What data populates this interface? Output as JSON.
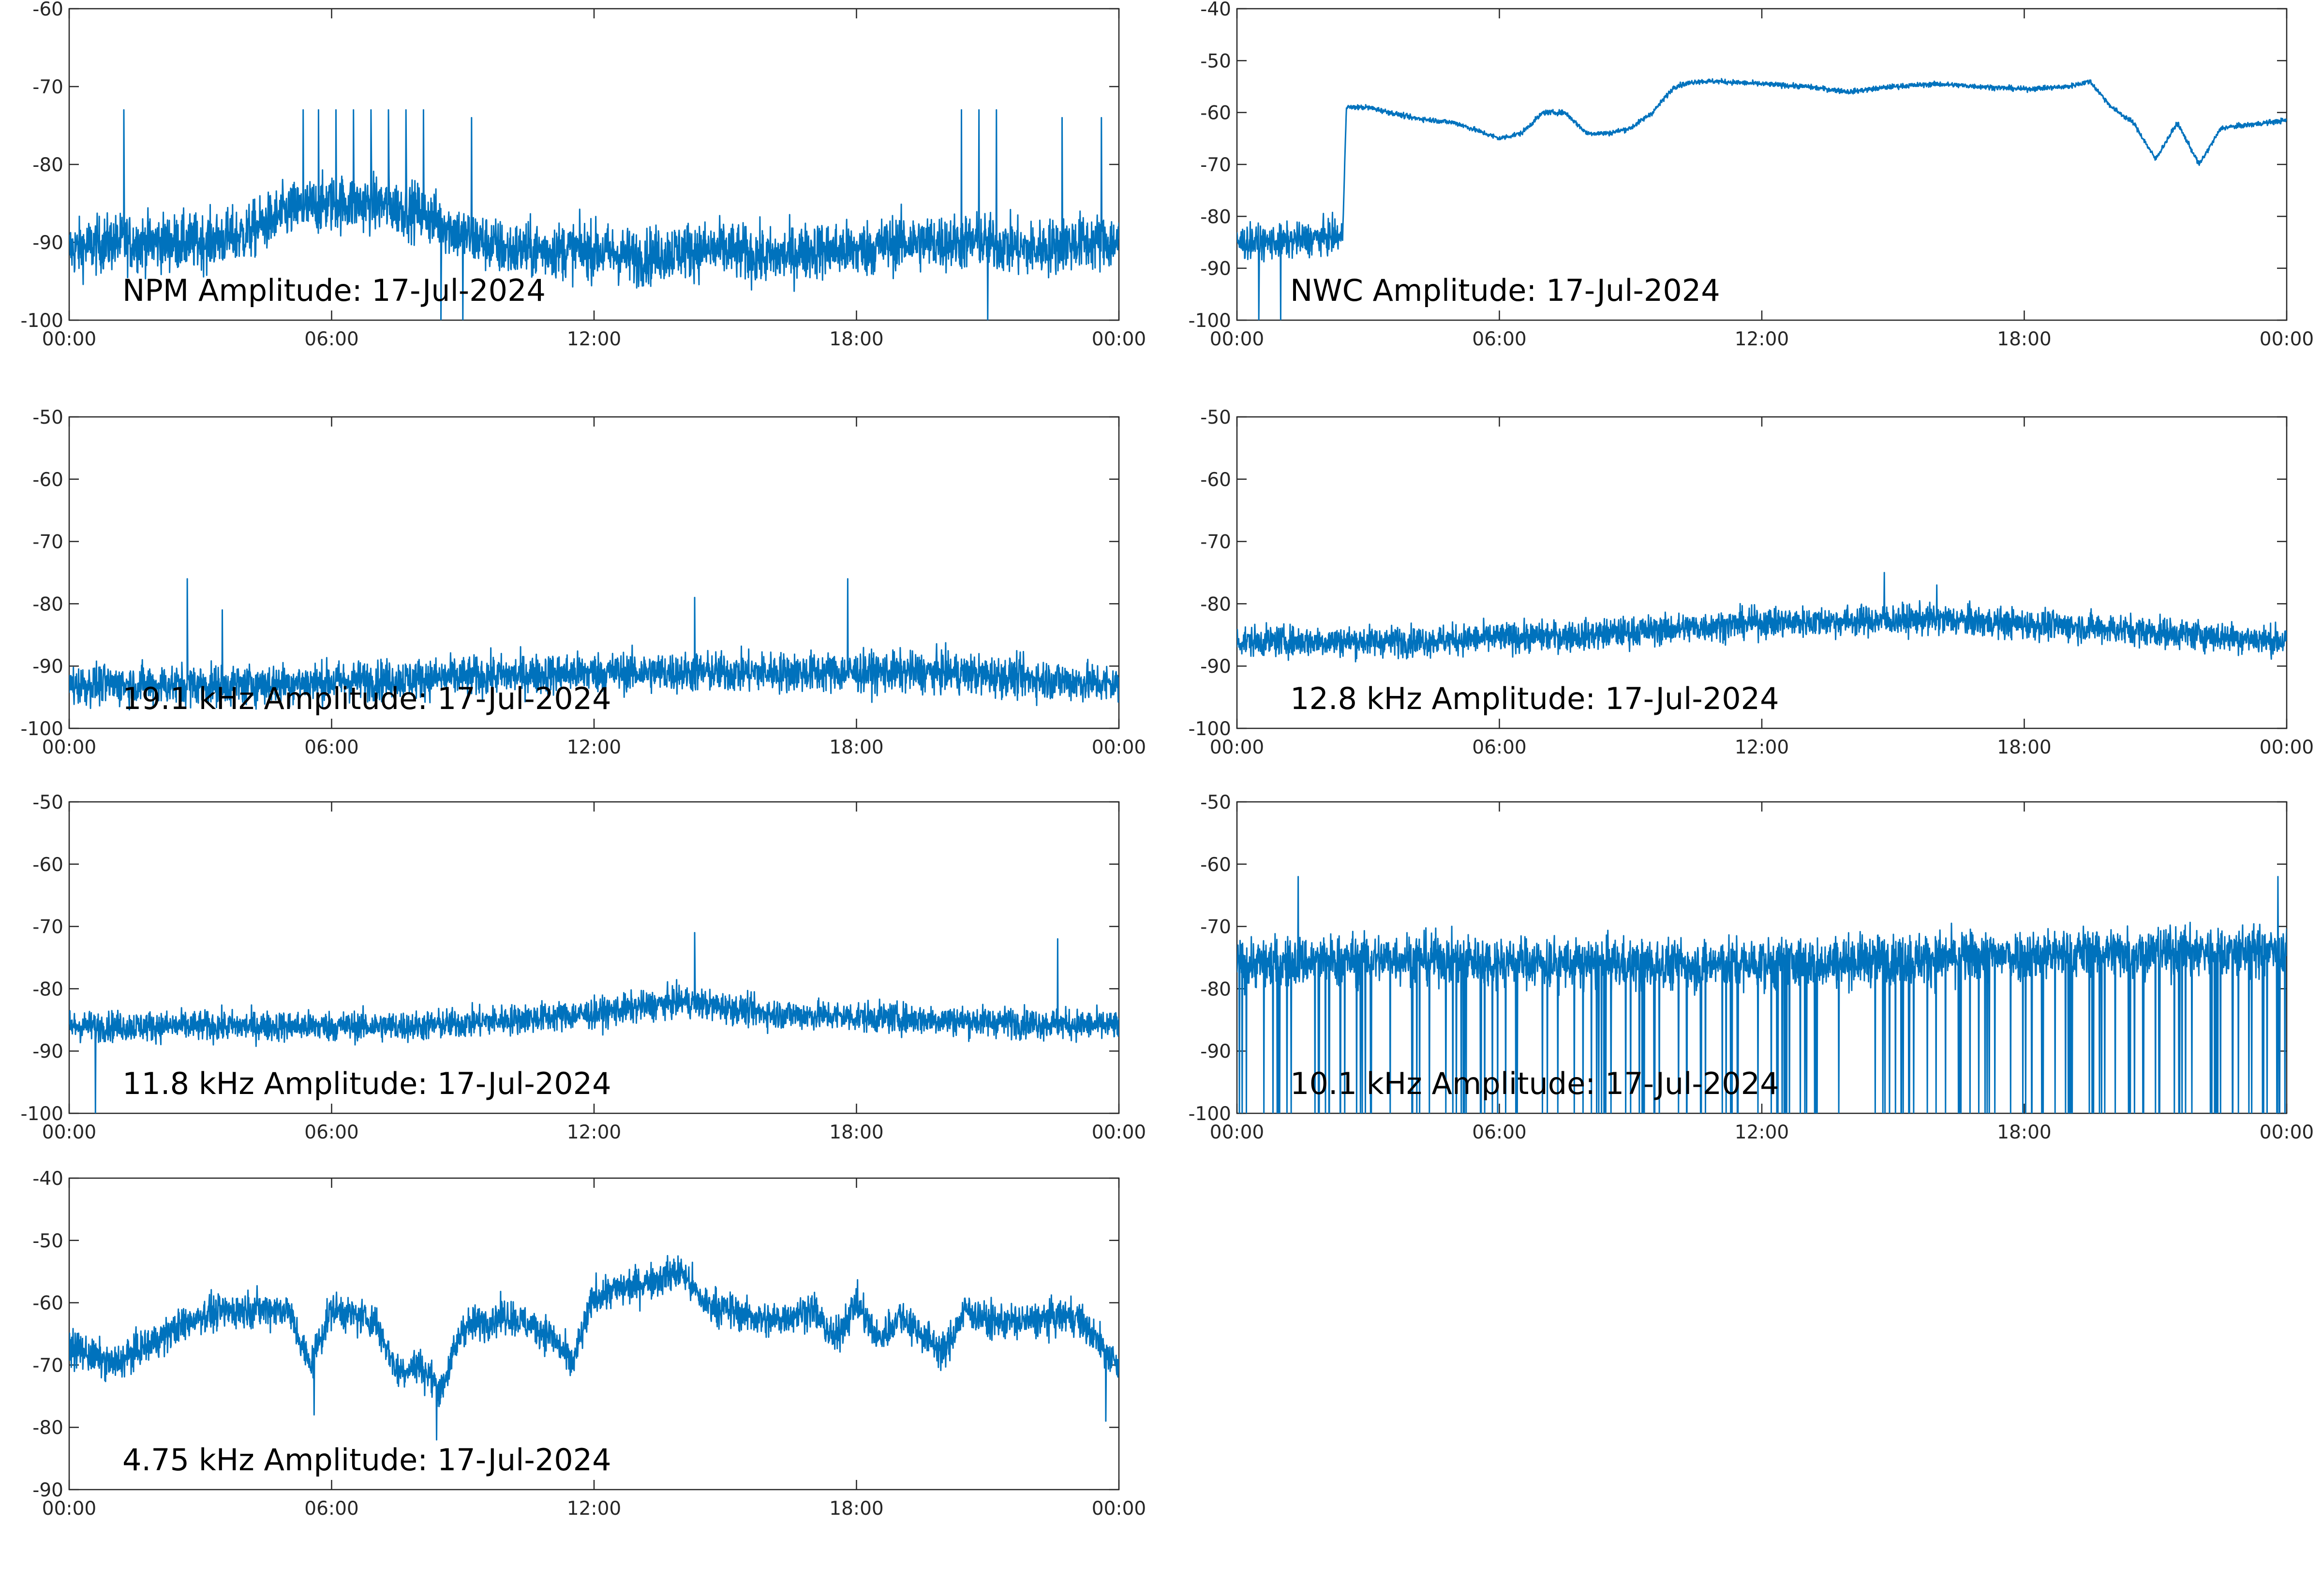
{
  "figure": {
    "line_color": "#0072BD",
    "axis_color": "#262626",
    "background": "#ffffff"
  },
  "chart_data": [
    {
      "type": "line",
      "title": "NPM Amplitude: 17-Jul-2024",
      "x_tick_labels": [
        "00:00",
        "06:00",
        "12:00",
        "18:00",
        "00:00"
      ],
      "y_tick_labels": [
        "-100",
        "-90",
        "-80",
        "-70",
        "-60"
      ],
      "xlim": [
        "00:00",
        "24:00"
      ],
      "ylim": [
        -100,
        -60
      ],
      "grid": false,
      "series": [
        {
          "x": [
            "00:00",
            "01:00",
            "02:00",
            "03:00",
            "04:00",
            "05:00",
            "06:00",
            "07:00",
            "08:00",
            "09:00",
            "10:00",
            "11:00",
            "12:00",
            "13:00",
            "14:00",
            "15:00",
            "16:00",
            "17:00",
            "18:00",
            "19:00",
            "20:00",
            "21:00",
            "22:00",
            "23:00",
            "24:00"
          ],
          "y": [
            -91,
            -90,
            -90,
            -90,
            -89,
            -86,
            -85,
            -85,
            -86,
            -89,
            -91,
            -91,
            -91,
            -92,
            -91,
            -91,
            -92,
            -91,
            -91,
            -90,
            -90,
            -90,
            -91,
            -90,
            -90
          ],
          "noise": 4.5,
          "spikes": [
            [
              1.25,
              -73
            ],
            [
              5.35,
              -73
            ],
            [
              5.7,
              -73
            ],
            [
              6.1,
              -73
            ],
            [
              6.5,
              -73
            ],
            [
              6.9,
              -73
            ],
            [
              7.3,
              -73
            ],
            [
              7.7,
              -73
            ],
            [
              8.1,
              -73
            ],
            [
              8.5,
              -73
            ],
            [
              9.2,
              -74
            ],
            [
              20.4,
              -73
            ],
            [
              20.8,
              -73
            ],
            [
              21.2,
              -73
            ],
            [
              22.7,
              -74
            ],
            [
              23.6,
              -74
            ],
            [
              8.5,
              -100
            ],
            [
              9.0,
              -100
            ],
            [
              21.0,
              -100
            ]
          ]
        }
      ]
    },
    {
      "type": "line",
      "title": "NWC Amplitude: 17-Jul-2024",
      "x_tick_labels": [
        "00:00",
        "06:00",
        "12:00",
        "18:00",
        "00:00"
      ],
      "y_tick_labels": [
        "-100",
        "-90",
        "-80",
        "-70",
        "-60",
        "-50",
        "-40"
      ],
      "xlim": [
        "00:00",
        "24:00"
      ],
      "ylim": [
        -100,
        -40
      ],
      "grid": false,
      "series": [
        {
          "x": [
            "00:00",
            "01:00",
            "02:00",
            "02:25",
            "02:30",
            "03:00",
            "04:00",
            "05:00",
            "06:00",
            "06:30",
            "07:00",
            "07:30",
            "08:00",
            "08:30",
            "09:00",
            "09:30",
            "10:00",
            "10:30",
            "11:00",
            "12:00",
            "13:00",
            "14:00",
            "15:00",
            "16:00",
            "17:00",
            "18:00",
            "19:00",
            "19:30",
            "20:00",
            "20:30",
            "21:00",
            "21:30",
            "22:00",
            "22:30",
            "23:00",
            "24:00"
          ],
          "y": [
            -85,
            -85,
            -84,
            -84,
            -59,
            -59,
            -61,
            -62,
            -65,
            -64,
            -60,
            -60,
            -64,
            -64,
            -63,
            -60,
            -55,
            -54,
            -54,
            -54.5,
            -55,
            -56,
            -55,
            -54.5,
            -55,
            -55.5,
            -55,
            -54,
            -59,
            -62,
            -69,
            -62,
            -70,
            -63,
            -62.5,
            -61.5
          ],
          "noise": 0.6,
          "noise_until": "02:25",
          "noise_before": 4,
          "spikes": [
            [
              0.5,
              -100
            ],
            [
              1.0,
              -100
            ]
          ]
        }
      ]
    },
    {
      "type": "line",
      "title": "19.1 kHz Amplitude: 17-Jul-2024",
      "x_tick_labels": [
        "00:00",
        "06:00",
        "12:00",
        "18:00",
        "00:00"
      ],
      "y_tick_labels": [
        "-100",
        "-90",
        "-80",
        "-70",
        "-60",
        "-50"
      ],
      "xlim": [
        "00:00",
        "24:00"
      ],
      "ylim": [
        -100,
        -50
      ],
      "grid": false,
      "series": [
        {
          "x": [
            "00:00",
            "04:00",
            "08:00",
            "12:00",
            "16:00",
            "20:00",
            "24:00"
          ],
          "y": [
            -93,
            -93,
            -92,
            -91,
            -91,
            -91,
            -93
          ],
          "noise": 4,
          "spikes": [
            [
              2.7,
              -76
            ],
            [
              17.8,
              -76
            ],
            [
              14.3,
              -79
            ],
            [
              3.5,
              -81
            ]
          ]
        }
      ]
    },
    {
      "type": "line",
      "title": "12.8 kHz Amplitude: 17-Jul-2024",
      "x_tick_labels": [
        "00:00",
        "06:00",
        "12:00",
        "18:00",
        "00:00"
      ],
      "y_tick_labels": [
        "-100",
        "-90",
        "-80",
        "-70",
        "-60",
        "-50"
      ],
      "xlim": [
        "00:00",
        "24:00"
      ],
      "ylim": [
        -100,
        -50
      ],
      "grid": false,
      "series": [
        {
          "x": [
            "00:00",
            "04:00",
            "08:00",
            "12:00",
            "16:00",
            "20:00",
            "24:00"
          ],
          "y": [
            -86,
            -86,
            -85,
            -83,
            -82.5,
            -84,
            -86
          ],
          "noise": 3,
          "spikes": [
            [
              14.8,
              -75
            ],
            [
              16.0,
              -77
            ]
          ]
        }
      ]
    },
    {
      "type": "line",
      "title": "11.8 kHz Amplitude: 17-Jul-2024",
      "x_tick_labels": [
        "00:00",
        "06:00",
        "12:00",
        "18:00",
        "00:00"
      ],
      "y_tick_labels": [
        "-100",
        "-90",
        "-80",
        "-70",
        "-60",
        "-50"
      ],
      "xlim": [
        "00:00",
        "24:00"
      ],
      "ylim": [
        -100,
        -50
      ],
      "grid": false,
      "series": [
        {
          "x": [
            "00:00",
            "04:00",
            "08:00",
            "12:00",
            "14:00",
            "16:00",
            "20:00",
            "24:00"
          ],
          "y": [
            -86,
            -86,
            -86,
            -84,
            -82,
            -84,
            -85,
            -86
          ],
          "noise": 3,
          "spikes": [
            [
              14.3,
              -71
            ],
            [
              22.6,
              -72
            ],
            [
              0.6,
              -100
            ]
          ]
        }
      ]
    },
    {
      "type": "line",
      "title": "10.1 kHz Amplitude: 17-Jul-2024",
      "x_tick_labels": [
        "00:00",
        "06:00",
        "12:00",
        "18:00",
        "00:00"
      ],
      "y_tick_labels": [
        "-100",
        "-90",
        "-80",
        "-70",
        "-60",
        "-50"
      ],
      "xlim": [
        "00:00",
        "24:00"
      ],
      "ylim": [
        -100,
        -50
      ],
      "grid": false,
      "series": [
        {
          "x": [
            "00:00",
            "04:00",
            "08:00",
            "12:00",
            "16:00",
            "20:00",
            "24:00"
          ],
          "y": [
            -76,
            -75,
            -76,
            -76,
            -75,
            -74,
            -74
          ],
          "noise": 5,
          "dropouts": 150,
          "spikes": [
            [
              1.4,
              -62
            ],
            [
              23.8,
              -62
            ]
          ]
        }
      ]
    },
    {
      "type": "line",
      "title": "4.75 kHz Amplitude: 17-Jul-2024",
      "x_tick_labels": [
        "00:00",
        "06:00",
        "12:00",
        "18:00",
        "00:00"
      ],
      "y_tick_labels": [
        "-90",
        "-80",
        "-70",
        "-60",
        "-50",
        "-40"
      ],
      "xlim": [
        "00:00",
        "24:00"
      ],
      "ylim": [
        -90,
        -40
      ],
      "grid": false,
      "series": [
        {
          "x": [
            "00:00",
            "01:00",
            "02:00",
            "03:00",
            "04:00",
            "05:00",
            "05:30",
            "06:00",
            "07:00",
            "07:30",
            "08:00",
            "08:30",
            "09:00",
            "10:00",
            "11:00",
            "11:30",
            "12:00",
            "13:00",
            "14:00",
            "14:30",
            "15:00",
            "16:00",
            "17:00",
            "17:30",
            "18:00",
            "18:30",
            "19:00",
            "20:00",
            "20:30",
            "21:00",
            "22:00",
            "23:00",
            "24:00"
          ],
          "y": [
            -67,
            -70,
            -66,
            -62,
            -61,
            -61,
            -70,
            -61,
            -63,
            -71,
            -70,
            -74,
            -64,
            -62,
            -65,
            -70,
            -59,
            -57,
            -55,
            -60,
            -61,
            -63,
            -61,
            -66,
            -60,
            -66,
            -62,
            -68,
            -61,
            -63,
            -63,
            -62,
            -70
          ],
          "noise": 3.5,
          "spikes": [
            [
              8.4,
              -82
            ],
            [
              5.6,
              -78
            ],
            [
              23.7,
              -79
            ]
          ]
        }
      ]
    }
  ]
}
